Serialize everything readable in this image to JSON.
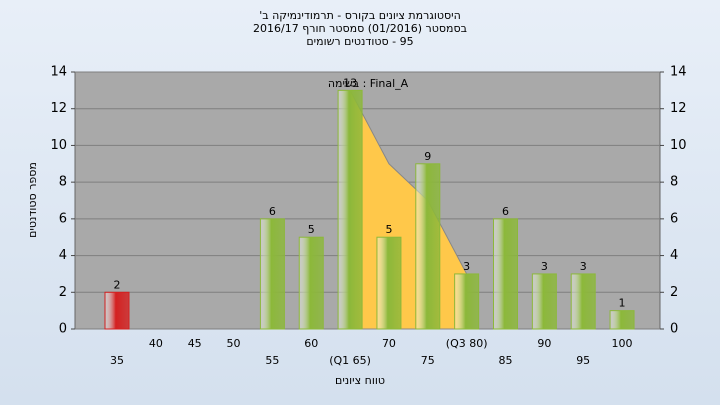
{
  "chart_data": {
    "type": "bar",
    "title": [
      "היסטוגרמת ציונים בקורס - תרמודינמיקה ב'",
      "בסמסטר (01/2016) סמסטר חורף 2016/17",
      "95 - סטודנטים רשומים"
    ],
    "legend": "בשימה : Final_A",
    "xlabel": "טווח ציונים",
    "ylabel": "מספר סטודנטים",
    "categories": [
      "35",
      "40",
      "45",
      "50",
      "55",
      "60",
      "(Q1 65)",
      "70",
      "75",
      "(Q3 80)",
      "85",
      "90",
      "95",
      "100"
    ],
    "values": [
      2,
      0,
      0,
      0,
      6,
      5,
      13,
      5,
      9,
      3,
      6,
      3,
      3,
      1
    ],
    "colors": [
      "#d42020",
      "#8cb83a",
      "#8cb83a",
      "#8cb83a",
      "#8cb83a",
      "#8cb83a",
      "#8cb83a",
      "#8cb83a",
      "#8cb83a",
      "#8cb83a",
      "#8cb83a",
      "#8cb83a",
      "#8cb83a",
      "#8cb83a"
    ],
    "area": {
      "color": "#ffc84a",
      "values": [
        null,
        null,
        null,
        null,
        null,
        null,
        13,
        9,
        7,
        3,
        null,
        null,
        null,
        null
      ]
    },
    "ylim": [
      0,
      14
    ],
    "yticks": [
      0,
      2,
      4,
      6,
      8,
      10,
      12,
      14
    ],
    "y2ticks": [
      0,
      2,
      4,
      6,
      8,
      10,
      12,
      14
    ],
    "grid": true
  }
}
